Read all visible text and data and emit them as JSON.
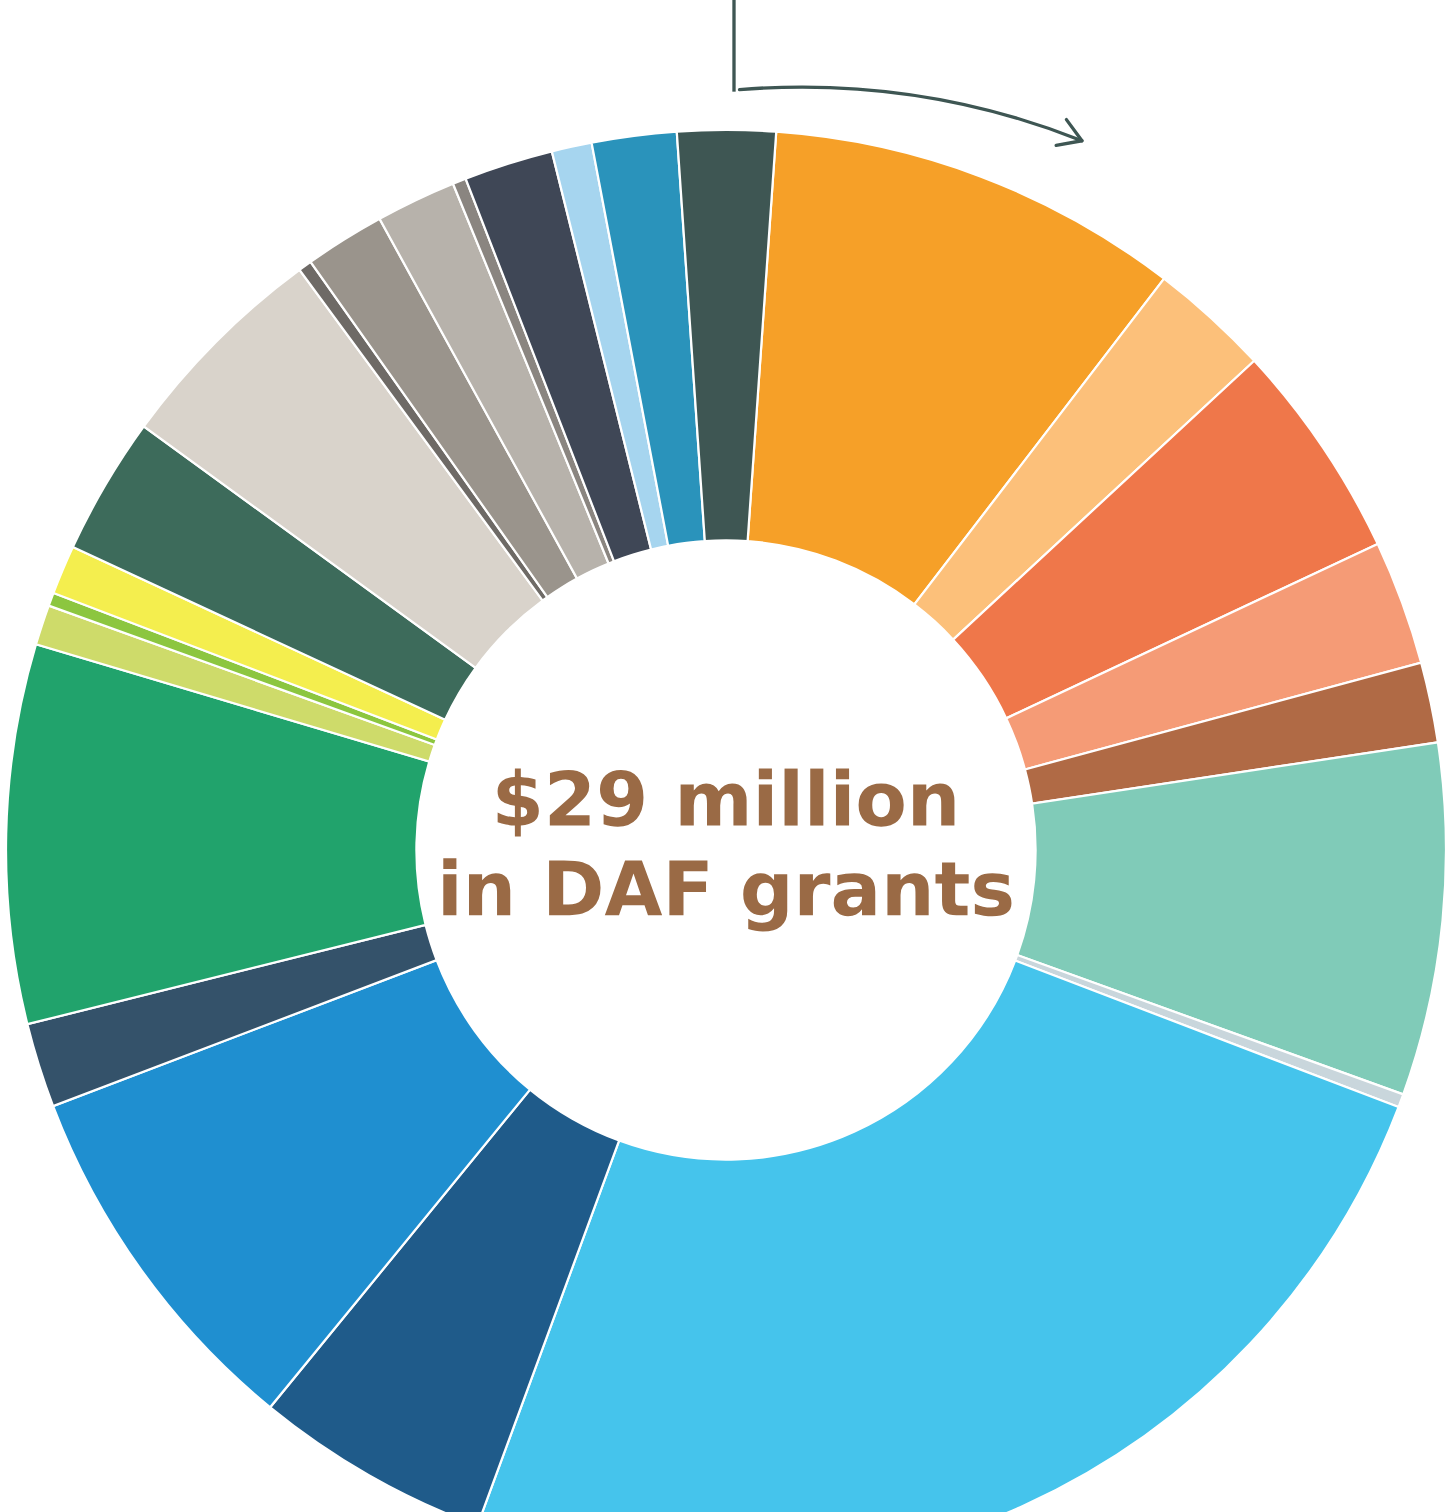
{
  "chart_data": {
    "type": "donut",
    "categories": [
      null,
      null,
      null,
      null,
      null,
      null,
      null,
      null,
      null,
      null,
      null,
      null,
      null,
      null,
      null,
      null,
      null,
      null,
      null,
      null,
      null,
      null,
      null,
      null,
      null
    ],
    "values": [
      9.3,
      2.7,
      4.9,
      2.8,
      1.8,
      7.9,
      0.3,
      24.8,
      5.3,
      8.3,
      1.9,
      8.5,
      0.9,
      0.3,
      1.1,
      3.1,
      4.9,
      0.3,
      1.8,
      1.8,
      0.3,
      2.0,
      0.9,
      1.9,
      2.2
    ],
    "colors": [
      "#f6a028",
      "#fcc07a",
      "#ef774a",
      "#f59b76",
      "#b06a45",
      "#80cbb8",
      "#c9d6dc",
      "#45c4ec",
      "#1f5b8a",
      "#1f8fd0",
      "#34526a",
      "#21a36c",
      "#cedb6a",
      "#8cc63f",
      "#f4ee4e",
      "#3d6b5b",
      "#d9d3cb",
      "#6e6a66",
      "#9a948c",
      "#b7b2ab",
      "#8a8580",
      "#3f4756",
      "#a6d5ef",
      "#2a93bb",
      "#3e5653"
    ],
    "annotations": [
      "$29 million\nin DAF grants"
    ]
  }
}
